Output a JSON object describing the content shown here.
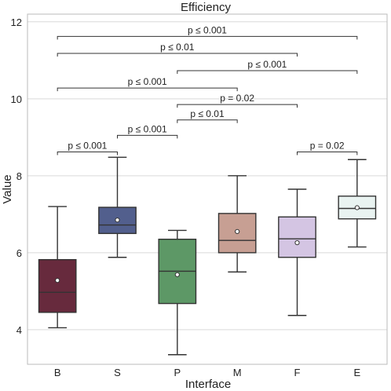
{
  "chart_data": {
    "type": "box",
    "title": "Efficiency",
    "xlabel": "Interface",
    "ylabel": "Value",
    "ylim": [
      3.1,
      12.2
    ],
    "yticks": [
      "4",
      "6",
      "8",
      "10",
      "12"
    ],
    "grid": true,
    "categories": [
      "B",
      "S",
      "P",
      "M",
      "F",
      "E"
    ],
    "series": [
      {
        "category": "B",
        "color": "#672a3d",
        "whisker_low": 4.05,
        "q1": 4.45,
        "median": 4.97,
        "q3": 5.82,
        "whisker_high": 7.2,
        "mean": 5.28
      },
      {
        "category": "S",
        "color": "#525f8d",
        "whisker_low": 5.88,
        "q1": 6.5,
        "median": 6.72,
        "q3": 7.18,
        "whisker_high": 8.48,
        "mean": 6.85
      },
      {
        "category": "P",
        "color": "#5d9866",
        "whisker_low": 3.35,
        "q1": 4.68,
        "median": 5.52,
        "q3": 6.35,
        "whisker_high": 6.58,
        "mean": 5.43
      },
      {
        "category": "M",
        "color": "#c79f93",
        "whisker_low": 5.5,
        "q1": 6.0,
        "median": 6.32,
        "q3": 7.02,
        "whisker_high": 8.0,
        "mean": 6.55
      },
      {
        "category": "F",
        "color": "#d4c5e3",
        "whisker_low": 4.37,
        "q1": 5.88,
        "median": 6.36,
        "q3": 6.93,
        "whisker_high": 7.65,
        "mean": 6.26
      },
      {
        "category": "E",
        "color": "#e9f3f1",
        "whisker_low": 6.15,
        "q1": 6.88,
        "median": 7.15,
        "q3": 7.47,
        "whisker_high": 8.42,
        "mean": 7.17
      }
    ],
    "comparisons": [
      {
        "from": "B",
        "to": "E",
        "label": "p ≤ 0.001",
        "level": 11.62
      },
      {
        "from": "B",
        "to": "F",
        "label": "p ≤ 0.01",
        "level": 11.18
      },
      {
        "from": "P",
        "to": "E",
        "label": "p ≤ 0.001",
        "level": 10.73
      },
      {
        "from": "B",
        "to": "M",
        "label": "p ≤ 0.001",
        "level": 10.28
      },
      {
        "from": "P",
        "to": "F",
        "label": "p = 0.02",
        "level": 9.85
      },
      {
        "from": "P",
        "to": "M",
        "label": "p ≤ 0.01",
        "level": 9.45
      },
      {
        "from": "S",
        "to": "P",
        "label": "p ≤ 0.001",
        "level": 9.05
      },
      {
        "from": "B",
        "to": "S",
        "label": "p ≤ 0.001",
        "level": 8.62
      },
      {
        "from": "F",
        "to": "E",
        "label": "p = 0.02",
        "level": 8.62
      }
    ]
  }
}
